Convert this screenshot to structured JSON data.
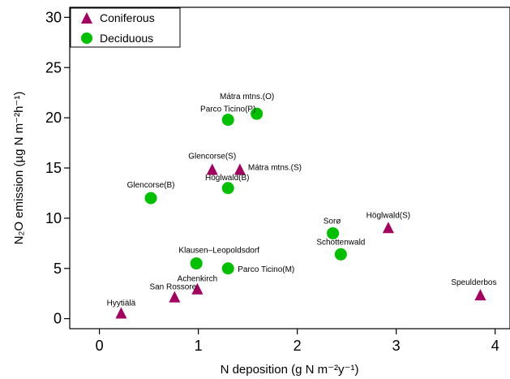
{
  "chart_data": {
    "type": "scatter",
    "xlabel": "N deposition (g N m⁻²y⁻¹)",
    "ylabel": "N₂O emission (µg N m⁻²h⁻¹)",
    "xlim": [
      -0.3,
      4.15
    ],
    "ylim": [
      -1,
      31
    ],
    "x_ticks": [
      0,
      1,
      2,
      3,
      4
    ],
    "y_ticks": [
      0,
      5,
      10,
      15,
      20,
      25,
      30
    ],
    "grid": false,
    "legend_position": "top-left",
    "series": [
      {
        "name": "Coniferous",
        "marker": "triangle",
        "color": "#a3005f",
        "points": [
          {
            "label": "Hyytiälä",
            "x": 0.22,
            "y": 0.5
          },
          {
            "label": "San Rossore",
            "x": 0.76,
            "y": 2.1
          },
          {
            "label": "Achenkirch",
            "x": 0.99,
            "y": 2.9
          },
          {
            "label": "Glencorse(S)",
            "x": 1.14,
            "y": 14.8
          },
          {
            "label": "Mátra mtns.(S)",
            "x": 1.42,
            "y": 14.8
          },
          {
            "label": "Höglwald(S)",
            "x": 2.92,
            "y": 9.0
          },
          {
            "label": "Speulderbos",
            "x": 3.85,
            "y": 2.3
          }
        ]
      },
      {
        "name": "Deciduous",
        "marker": "circle",
        "color": "#00c000",
        "points": [
          {
            "label": "Glencorse(B)",
            "x": 0.52,
            "y": 12.0
          },
          {
            "label": "Klausen–Leopoldsdorf",
            "x": 0.98,
            "y": 5.5
          },
          {
            "label": "Parco Ticino(M)",
            "x": 1.3,
            "y": 5.0
          },
          {
            "label": "Parco Ticino(P)",
            "x": 1.3,
            "y": 19.8
          },
          {
            "label": "Mátra mtns.(O)",
            "x": 1.59,
            "y": 20.4
          },
          {
            "label": "Höglwald(B)",
            "x": 1.3,
            "y": 13.0
          },
          {
            "label": "Sorø",
            "x": 2.36,
            "y": 8.5
          },
          {
            "label": "Schottenwald",
            "x": 2.44,
            "y": 6.4
          }
        ]
      }
    ]
  }
}
